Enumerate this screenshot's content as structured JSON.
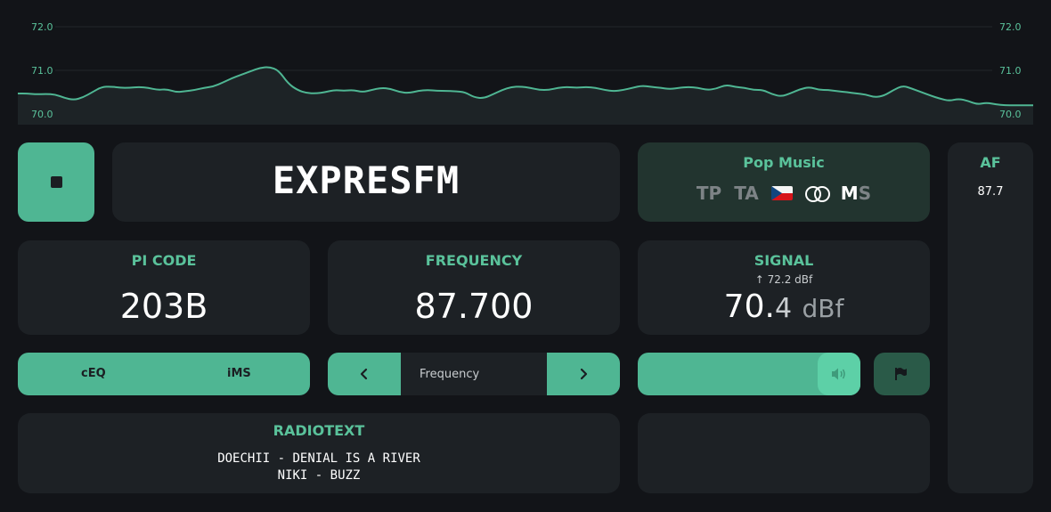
{
  "graph": {
    "y_labels_left": [
      "72.0",
      "71.0",
      "70.0"
    ],
    "y_labels_right": [
      "72.0",
      "71.0",
      "70.0"
    ],
    "ylim": [
      70.0,
      72.0
    ],
    "colors": {
      "line": "#4fb693",
      "fill": "#1d2326",
      "label": "#5ac29b",
      "grid": "#22262a"
    }
  },
  "chart_data": {
    "type": "area",
    "y_tick_labels": [
      "72.0",
      "71.0",
      "70.0"
    ],
    "ylim": [
      70.0,
      72.0
    ],
    "values": [
      70.47,
      70.47,
      70.45,
      70.46,
      70.45,
      70.37,
      70.32,
      70.38,
      70.5,
      70.62,
      70.63,
      70.6,
      70.6,
      70.62,
      70.6,
      70.55,
      70.57,
      70.5,
      70.52,
      70.55,
      70.6,
      70.63,
      70.72,
      70.82,
      70.9,
      70.98,
      71.06,
      71.08,
      71.0,
      70.7,
      70.55,
      70.48,
      70.47,
      70.5,
      70.55,
      70.53,
      70.55,
      70.5,
      70.55,
      70.6,
      70.58,
      70.5,
      70.48,
      70.53,
      70.55,
      70.53,
      70.53,
      70.52,
      70.5,
      70.38,
      70.36,
      70.45,
      70.55,
      70.62,
      70.63,
      70.6,
      70.55,
      70.55,
      70.6,
      70.62,
      70.6,
      70.62,
      70.6,
      70.55,
      70.52,
      70.55,
      70.6,
      70.65,
      70.62,
      70.6,
      70.57,
      70.6,
      70.62,
      70.6,
      70.55,
      70.58,
      70.67,
      70.62,
      70.6,
      70.55,
      70.55,
      70.45,
      70.4,
      70.48,
      70.57,
      70.62,
      70.55,
      70.55,
      70.52,
      70.5,
      70.47,
      70.45,
      70.38,
      70.42,
      70.55,
      70.65,
      70.58,
      70.5,
      70.42,
      70.35,
      70.3,
      70.35,
      70.3,
      70.22,
      70.26,
      70.22,
      70.2,
      70.2,
      70.2,
      70.2
    ],
    "colors": {
      "line": "#4fb693"
    }
  },
  "stop_button": {
    "icon": "stop-icon"
  },
  "station": {
    "ps": "EXPRESFM"
  },
  "pty": {
    "genre": "Pop Music",
    "tp": "TP",
    "ta": "TA",
    "country_flag": "czech-flag-icon",
    "stereo_icon": "stereo-icon",
    "ms_m": "M",
    "ms_s": "S"
  },
  "af": {
    "title": "AF",
    "frequencies": [
      "87.7"
    ]
  },
  "pi": {
    "title": "PI CODE",
    "value": "203B"
  },
  "frequency": {
    "title": "FREQUENCY",
    "value": "87.700"
  },
  "signal": {
    "title": "SIGNAL",
    "peak": "72.2 dBf",
    "value_int": "70.",
    "value_dec": "4",
    "unit": "dBf"
  },
  "ceq": {
    "label": "cEQ"
  },
  "ims": {
    "label": "iMS"
  },
  "tuner": {
    "placeholder": "Frequency",
    "prev_icon": "chevron-left-icon",
    "next_icon": "chevron-right-icon"
  },
  "volume": {
    "level": 0.85,
    "icon": "speaker-icon"
  },
  "flag_button": {
    "icon": "flag-icon"
  },
  "radiotext": {
    "title": "RADIOTEXT",
    "line1": "DOECHII - DENIAL IS A RIVER",
    "line2": "NIKI - BUZZ"
  },
  "colors": {
    "accent": "#4fb693",
    "panel": "#1d2125",
    "background": "#121418",
    "pty_panel": "#22342f"
  }
}
